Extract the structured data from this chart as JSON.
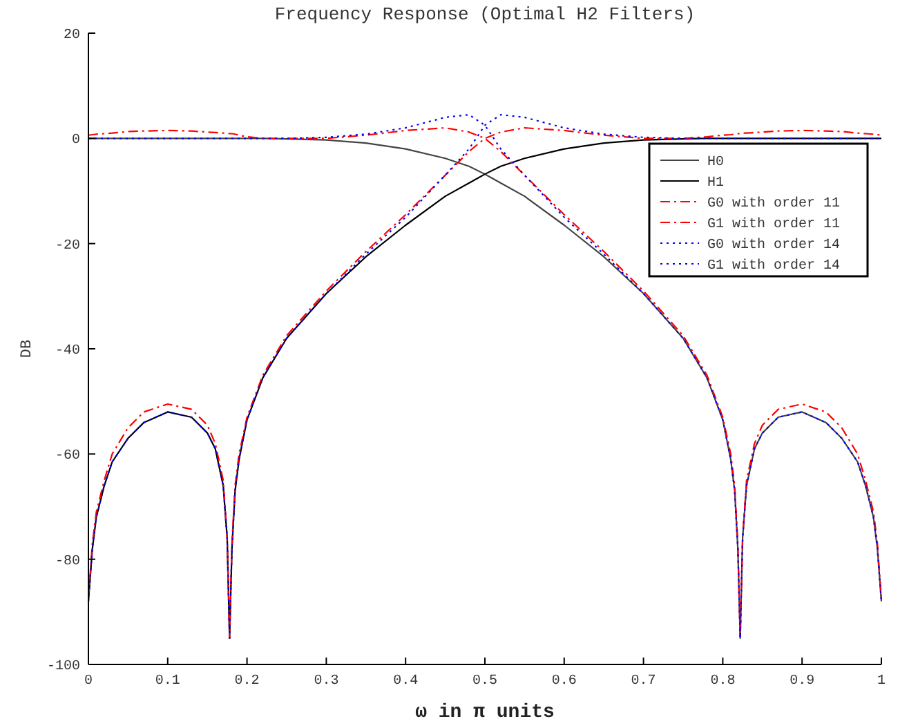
{
  "chart_data": {
    "type": "line",
    "title": "Frequency Response (Optimal H2 Filters)",
    "xlabel": "ω in π  units",
    "ylabel": "DB",
    "x": [
      0,
      0.005,
      0.01,
      0.02,
      0.03,
      0.05,
      0.07,
      0.1,
      0.13,
      0.15,
      0.16,
      0.17,
      0.175,
      0.178,
      0.181,
      0.185,
      0.19,
      0.2,
      0.22,
      0.25,
      0.3,
      0.35,
      0.4,
      0.45,
      0.48,
      0.5,
      0.52,
      0.55,
      0.6,
      0.65,
      0.7,
      0.75,
      0.78,
      0.8,
      0.81,
      0.815,
      0.819,
      0.822,
      0.825,
      0.83,
      0.84,
      0.85,
      0.87,
      0.9,
      0.93,
      0.95,
      0.97,
      0.98,
      0.99,
      0.995,
      1
    ],
    "xlim": [
      0,
      1
    ],
    "xticks": [
      0,
      0.1,
      0.2,
      0.3,
      0.4,
      0.5,
      0.6,
      0.7,
      0.8,
      0.9,
      1
    ],
    "ylim": [
      -100,
      20
    ],
    "yticks": [
      -100,
      -80,
      -60,
      -40,
      -20,
      0,
      20
    ],
    "grid": false,
    "legend": "top right",
    "series": [
      {
        "name": "H0",
        "color": "#444444",
        "line_style": "solid",
        "values": [
          0,
          0,
          0,
          0,
          0,
          0,
          0,
          0,
          0,
          0,
          0,
          0,
          0,
          0,
          0,
          0,
          0,
          0,
          0,
          -0.1,
          -0.3,
          -0.9,
          -2,
          -3.8,
          -5.3,
          -6.8,
          -8.5,
          -11,
          -16.5,
          -22.5,
          -29.5,
          -38,
          -45.5,
          -53.5,
          -61,
          -67,
          -78,
          -95,
          -76,
          -66,
          -59,
          -56,
          -53,
          -52,
          -54,
          -57,
          -61.5,
          -66,
          -72,
          -78,
          -88
        ]
      },
      {
        "name": "H1",
        "color": "#000000",
        "line_style": "solid",
        "values": [
          -88,
          -78,
          -72,
          -66,
          -61.5,
          -57,
          -54,
          -52,
          -53,
          -56,
          -59,
          -66,
          -76,
          -95,
          -78,
          -67,
          -61,
          -53.5,
          -45.5,
          -38,
          -29.5,
          -22.5,
          -16.5,
          -11,
          -8.5,
          -6.8,
          -5.3,
          -3.8,
          -2,
          -0.9,
          -0.3,
          -0.1,
          0,
          0,
          0,
          0,
          0,
          0,
          0,
          0,
          0,
          0,
          0,
          0,
          0,
          0,
          0,
          0,
          0,
          0,
          0
        ]
      },
      {
        "name": "G0 with order 11",
        "color": "#ff0000",
        "line_style": "dashdot",
        "values": [
          0.6,
          0.7,
          0.8,
          0.9,
          1,
          1.3,
          1.4,
          1.5,
          1.4,
          1.2,
          1.1,
          1,
          1,
          0.9,
          0.9,
          0.8,
          0.6,
          0.3,
          0,
          0,
          0,
          0.6,
          1.5,
          2,
          1.2,
          0,
          -2.5,
          -7,
          -14.5,
          -21.5,
          -29,
          -37.5,
          -45,
          -53,
          -60,
          -66,
          -77,
          -95,
          -76,
          -65,
          -58,
          -54.5,
          -51.5,
          -50.5,
          -52,
          -55,
          -60,
          -65,
          -71,
          -77,
          -87.5
        ]
      },
      {
        "name": "G1 with order 11",
        "color": "#ff0000",
        "line_style": "dashdot",
        "values": [
          -87.5,
          -77,
          -71,
          -65,
          -60,
          -55,
          -52,
          -50.5,
          -51.5,
          -54.5,
          -58,
          -65,
          -76,
          -95,
          -77,
          -66,
          -60,
          -53,
          -45,
          -37.5,
          -29,
          -21.5,
          -14.5,
          -7,
          -2.5,
          0,
          1.2,
          2,
          1.5,
          0.6,
          0,
          0,
          0.3,
          0.6,
          0.7,
          0.8,
          0.9,
          0.9,
          1,
          1,
          1.1,
          1.2,
          1.4,
          1.5,
          1.4,
          1.3,
          1,
          0.9,
          0.8,
          0.7,
          0.6
        ]
      },
      {
        "name": "G0 with order 14",
        "color": "#0000ff",
        "line_style": "dotted",
        "values": [
          0,
          0,
          0,
          0,
          0,
          0,
          0,
          0,
          0,
          0,
          0,
          0,
          0,
          0,
          0,
          0,
          0,
          0,
          0,
          0,
          0.2,
          0.8,
          2,
          4,
          4.5,
          2.5,
          -2,
          -7,
          -15,
          -22,
          -29.5,
          -38,
          -45.5,
          -53.5,
          -61,
          -67,
          -78,
          -95,
          -76,
          -66,
          -59,
          -56,
          -53,
          -52,
          -54,
          -57,
          -61.5,
          -66,
          -72,
          -78,
          -88
        ]
      },
      {
        "name": "G1 with order 14",
        "color": "#0000ff",
        "line_style": "dotted",
        "values": [
          -88,
          -78,
          -72,
          -66,
          -61.5,
          -57,
          -54,
          -52,
          -53,
          -56,
          -59,
          -66,
          -76,
          -95,
          -78,
          -67,
          -61,
          -53.5,
          -45.5,
          -38,
          -29.5,
          -22,
          -15,
          -7,
          -2,
          2.5,
          4.5,
          4,
          2,
          0.8,
          0.2,
          0,
          0,
          0,
          0,
          0,
          0,
          0,
          0,
          0,
          0,
          0,
          0,
          0,
          0,
          0,
          0,
          0,
          0,
          0,
          0
        ]
      }
    ]
  }
}
